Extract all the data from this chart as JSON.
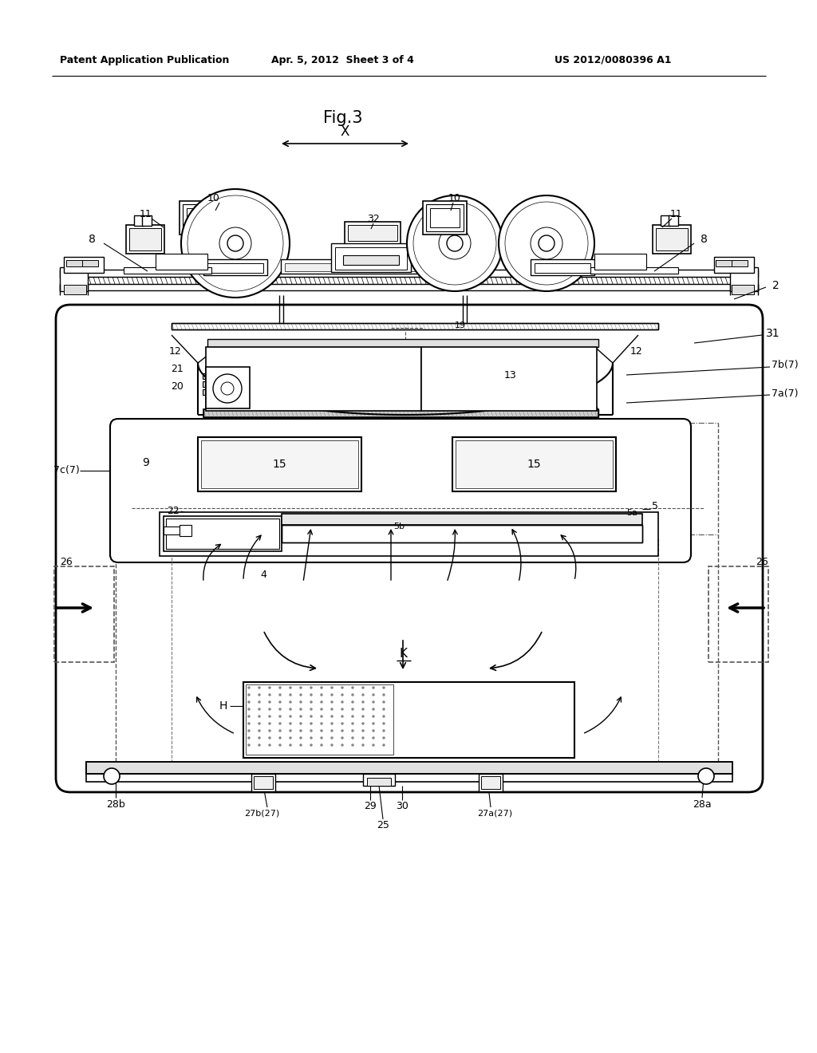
{
  "title": "Fig.3",
  "header_left": "Patent Application Publication",
  "header_center": "Apr. 5, 2012  Sheet 3 of 4",
  "header_right": "US 2012/0080396 A1",
  "bg_color": "#ffffff",
  "fig_width": 10.24,
  "fig_height": 13.2
}
